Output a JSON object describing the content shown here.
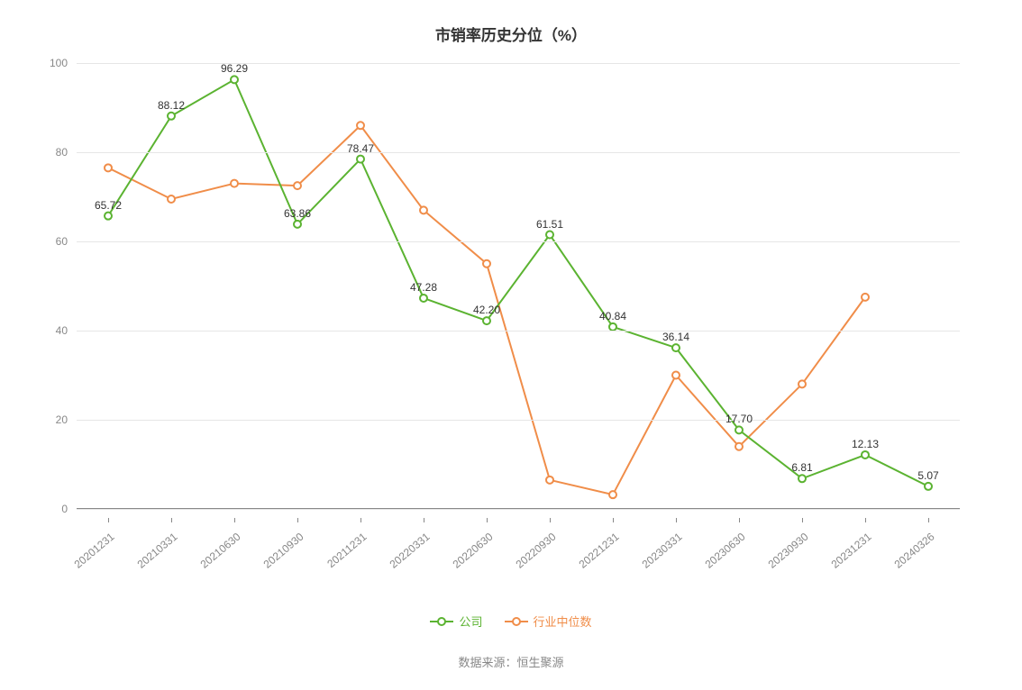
{
  "chart": {
    "type": "line",
    "title": "市销率历史分位（%）",
    "title_fontsize": 17,
    "title_color": "#333333",
    "background_color": "#ffffff",
    "grid_color": "#e6e6e6",
    "axis_color": "#888888",
    "tick_label_color": "#888888",
    "tick_fontsize": 12,
    "data_label_fontsize": 12,
    "data_label_color": "#333333",
    "ylim": [
      0,
      100
    ],
    "ytick_step": 20,
    "yticks": [
      0,
      20,
      40,
      60,
      80,
      100
    ],
    "x_label_rotation": -40,
    "categories": [
      "20201231",
      "20210331",
      "20210630",
      "20210930",
      "20211231",
      "20220331",
      "20220630",
      "20220930",
      "20221231",
      "20230331",
      "20230630",
      "20230930",
      "20231231",
      "20240326"
    ],
    "series": [
      {
        "name": "公司",
        "color": "#5bb331",
        "line_width": 2,
        "marker": "circle-open",
        "marker_size": 8,
        "marker_fill": "#ffffff",
        "show_data_labels": true,
        "values": [
          65.72,
          88.12,
          96.29,
          63.86,
          78.47,
          47.28,
          42.2,
          61.51,
          40.84,
          36.14,
          17.7,
          6.81,
          12.13,
          5.07
        ]
      },
      {
        "name": "行业中位数",
        "color": "#f08d49",
        "line_width": 2,
        "marker": "circle-open",
        "marker_size": 8,
        "marker_fill": "#ffffff",
        "show_data_labels": false,
        "values": [
          76.5,
          69.5,
          73.0,
          72.5,
          86.0,
          67.0,
          55.0,
          6.5,
          3.2,
          30.0,
          14.0,
          28.0,
          47.5,
          null
        ]
      }
    ],
    "legend": {
      "position": "bottom",
      "items": [
        "公司",
        "行业中位数"
      ]
    },
    "source_label": "数据来源：恒生聚源"
  }
}
